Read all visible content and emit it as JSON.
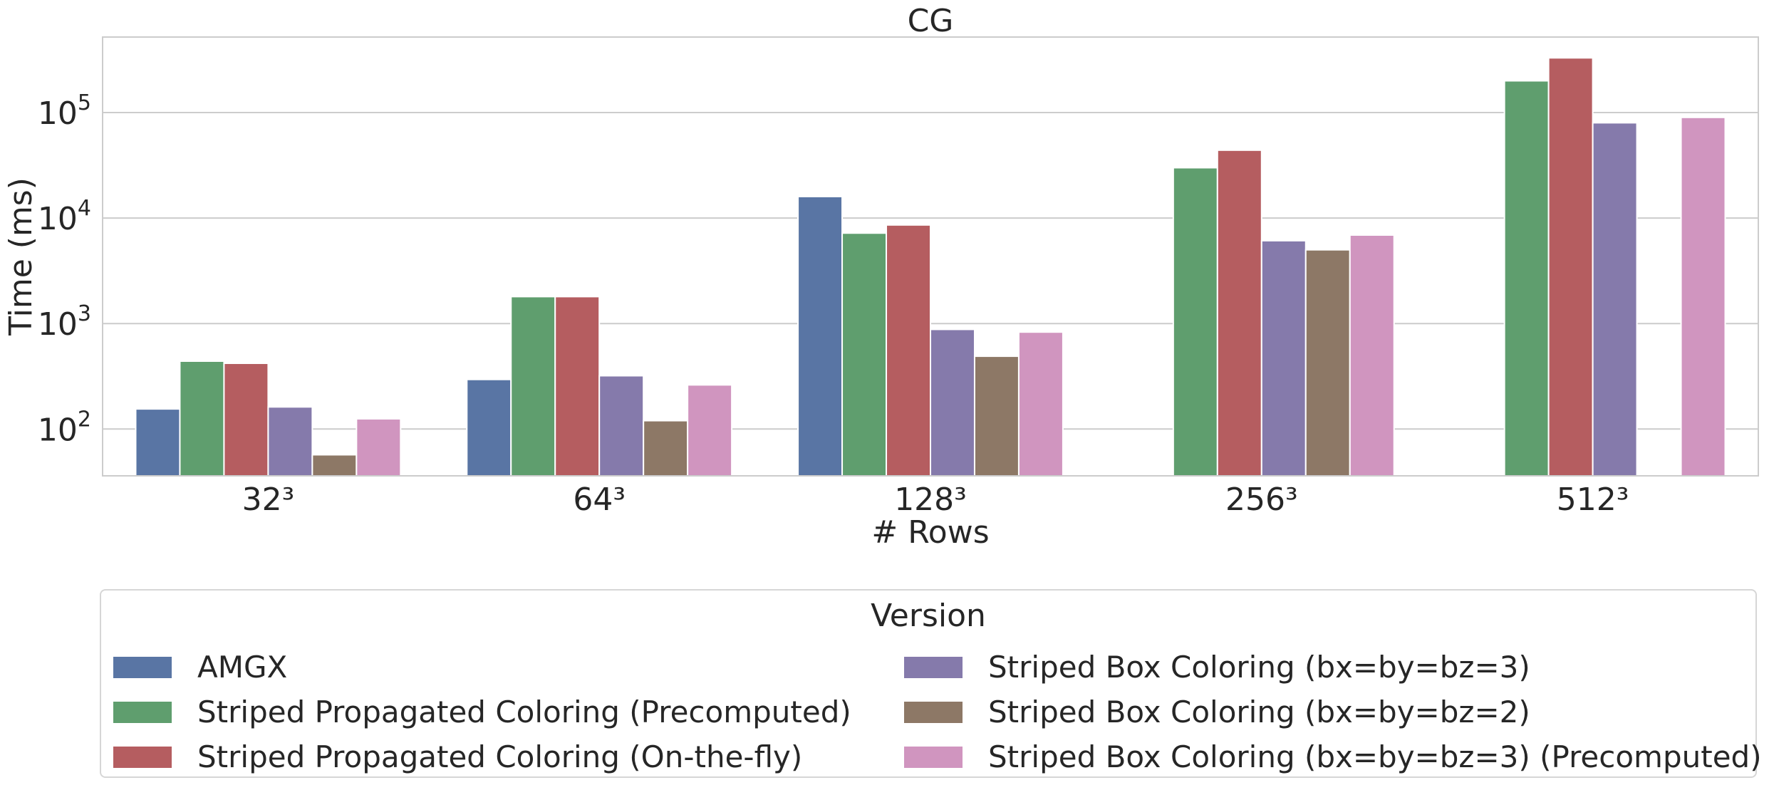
{
  "chart_data": {
    "type": "bar",
    "title": "CG",
    "xlabel": "# Rows",
    "ylabel": "Time (ms)",
    "yscale": "log",
    "ylim": [
      36,
      520000
    ],
    "yticks": [
      {
        "value": 100,
        "base": "10",
        "exp": "2"
      },
      {
        "value": 1000,
        "base": "10",
        "exp": "3"
      },
      {
        "value": 10000,
        "base": "10",
        "exp": "4"
      },
      {
        "value": 100000,
        "base": "10",
        "exp": "5"
      }
    ],
    "grid": "horizontal",
    "categories": [
      "32³",
      "64³",
      "128³",
      "256³",
      "512³"
    ],
    "series": [
      {
        "name": "AMGX",
        "color": "#5975a4",
        "values": [
          155,
          295,
          16000,
          null,
          null
        ]
      },
      {
        "name": "Striped Propagated Coloring (Precomputed)",
        "color": "#5f9e6e",
        "values": [
          440,
          1800,
          7200,
          30000,
          200000
        ]
      },
      {
        "name": "Striped Propagated Coloring (On-the-fly)",
        "color": "#b55d60",
        "values": [
          420,
          1800,
          8600,
          44000,
          330000
        ]
      },
      {
        "name": "Striped Box Coloring (bx=by=bz=3)",
        "color": "#857aab",
        "values": [
          162,
          320,
          880,
          6100,
          80000
        ]
      },
      {
        "name": "Striped Box Coloring (bx=by=bz=2)",
        "color": "#8d7866",
        "values": [
          57,
          120,
          490,
          5000,
          null
        ]
      },
      {
        "name": "Striped Box Coloring (bx=by=bz=3) (Precomputed)",
        "color": "#d095bf",
        "values": [
          125,
          262,
          830,
          6900,
          90000
        ]
      }
    ],
    "legend": {
      "title": "Version",
      "placement": "below",
      "columns": 2
    }
  }
}
